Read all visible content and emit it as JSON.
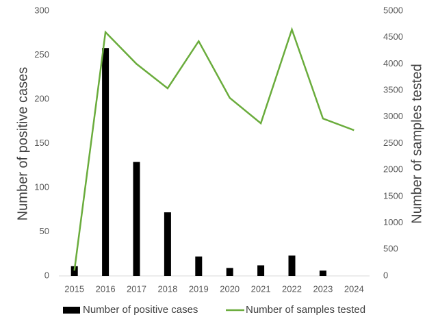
{
  "chart_data": {
    "type": "combo",
    "categories": [
      "2015",
      "2016",
      "2017",
      "2018",
      "2019",
      "2020",
      "2021",
      "2022",
      "2023",
      "2024"
    ],
    "ylabel": "Number of positive cases",
    "y2label": "Number of samples tested",
    "ylim": [
      0,
      300
    ],
    "yticks": [
      0,
      50,
      100,
      150,
      200,
      250,
      300
    ],
    "y2lim": [
      0,
      5000
    ],
    "y2ticks": [
      0,
      500,
      1000,
      1500,
      2000,
      2500,
      3000,
      3500,
      4000,
      4500,
      5000
    ],
    "legend": "bottom",
    "series": [
      {
        "name": "Number of positive cases",
        "type": "bar",
        "color": "#000000",
        "axis": "y",
        "values": [
          11,
          258,
          129,
          72,
          22,
          9,
          12,
          23,
          6,
          0
        ]
      },
      {
        "name": "Number of samples tested",
        "type": "line",
        "color": "#6aac3c",
        "axis": "y2",
        "values": [
          100,
          4600,
          4000,
          3540,
          4430,
          3360,
          2880,
          4650,
          2970,
          2750
        ]
      }
    ]
  }
}
